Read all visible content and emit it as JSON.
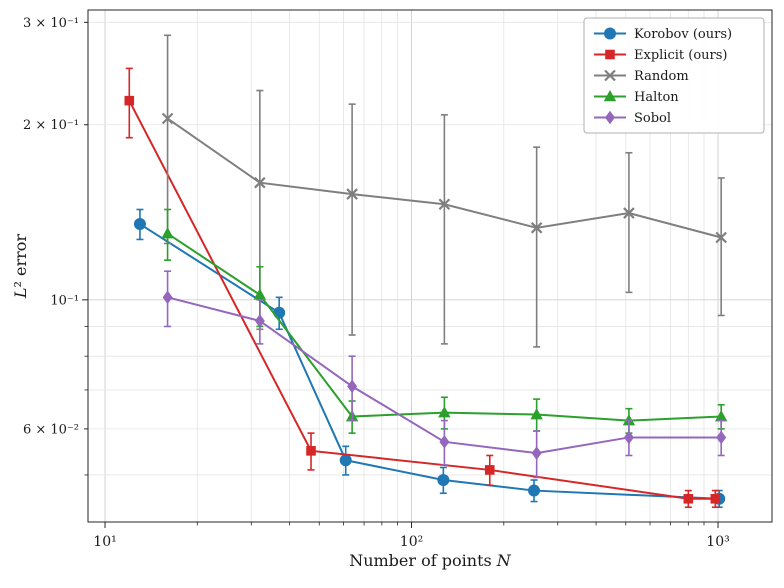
{
  "figure": {
    "background": "#ffffff"
  },
  "chart_data": {
    "type": "line",
    "title": "",
    "xlabel_parts": [
      {
        "text": "Number of points ",
        "italic": false
      },
      {
        "text": "N",
        "italic": true
      }
    ],
    "ylabel_parts": [
      {
        "text": "L",
        "italic": true
      },
      {
        "text": "² error",
        "italic": false
      }
    ],
    "xscale": "log",
    "yscale": "log",
    "xlim": [
      8.8,
      1500
    ],
    "ylim": [
      0.0415,
      0.315
    ],
    "grid": true,
    "legend_position": "upper right",
    "x_ticks": {
      "values": [
        10,
        100,
        1000
      ],
      "labels": [
        "10¹",
        "10²",
        "10³"
      ],
      "minor": [
        20,
        30,
        40,
        50,
        60,
        70,
        80,
        90,
        200,
        300,
        400,
        500,
        600,
        700,
        800,
        900
      ]
    },
    "y_ticks": {
      "labeled": [
        {
          "v": 0.3,
          "label": "3 × 10⁻¹",
          "major": false
        },
        {
          "v": 0.2,
          "label": "2 × 10⁻¹",
          "major": false
        },
        {
          "v": 0.1,
          "label": "10⁻¹",
          "major": true
        },
        {
          "v": 0.06,
          "label": "6 × 10⁻²",
          "major": false
        }
      ],
      "minor_unlabeled": [
        0.05,
        0.07,
        0.08,
        0.09
      ]
    },
    "series": [
      {
        "name": "Korobov (ours)",
        "color": "#1f77b4",
        "marker": "circle",
        "x": [
          13,
          37,
          61,
          127,
          251,
          1009
        ],
        "y": [
          0.135,
          0.095,
          0.053,
          0.049,
          0.047,
          0.0455
        ],
        "yerr": [
          0.008,
          0.006,
          0.003,
          0.0025,
          0.002,
          0.0015
        ]
      },
      {
        "name": "Explicit (ours)",
        "color": "#d62728",
        "marker": "square",
        "x": [
          12,
          47,
          180,
          800,
          980
        ],
        "y": [
          0.22,
          0.055,
          0.051,
          0.0455,
          0.0455
        ],
        "yerr": [
          0.03,
          0.004,
          0.003,
          0.0015,
          0.0015
        ]
      },
      {
        "name": "Random",
        "color": "#7f7f7f",
        "marker": "x",
        "x": [
          16,
          32,
          64,
          128,
          256,
          512,
          1024
        ],
        "y": [
          0.205,
          0.159,
          0.152,
          0.146,
          0.133,
          0.141,
          0.128
        ],
        "yerr": [
          0.08,
          0.07,
          0.065,
          0.062,
          0.05,
          0.038,
          0.034
        ]
      },
      {
        "name": "Halton",
        "color": "#2ca02c",
        "marker": "triangle",
        "x": [
          16,
          32,
          64,
          128,
          256,
          512,
          1024
        ],
        "y": [
          0.13,
          0.102,
          0.063,
          0.064,
          0.0635,
          0.062,
          0.063
        ],
        "yerr": [
          0.013,
          0.012,
          0.004,
          0.004,
          0.004,
          0.003,
          0.003
        ]
      },
      {
        "name": "Sobol",
        "color": "#9467bd",
        "marker": "diamond",
        "x": [
          16,
          32,
          64,
          128,
          256,
          512,
          1024
        ],
        "y": [
          0.101,
          0.092,
          0.071,
          0.057,
          0.0545,
          0.058,
          0.058
        ],
        "yerr": [
          0.011,
          0.008,
          0.009,
          0.005,
          0.005,
          0.004,
          0.004
        ]
      }
    ],
    "style": {
      "grid_minor_color": "#e4e4e4",
      "grid_major_color": "#cfcfcf",
      "spine_color": "#262626",
      "legend_border_color": "#b0b0b0",
      "legend_bg": "#ffffff",
      "text_color": "#1a1a1a"
    }
  }
}
